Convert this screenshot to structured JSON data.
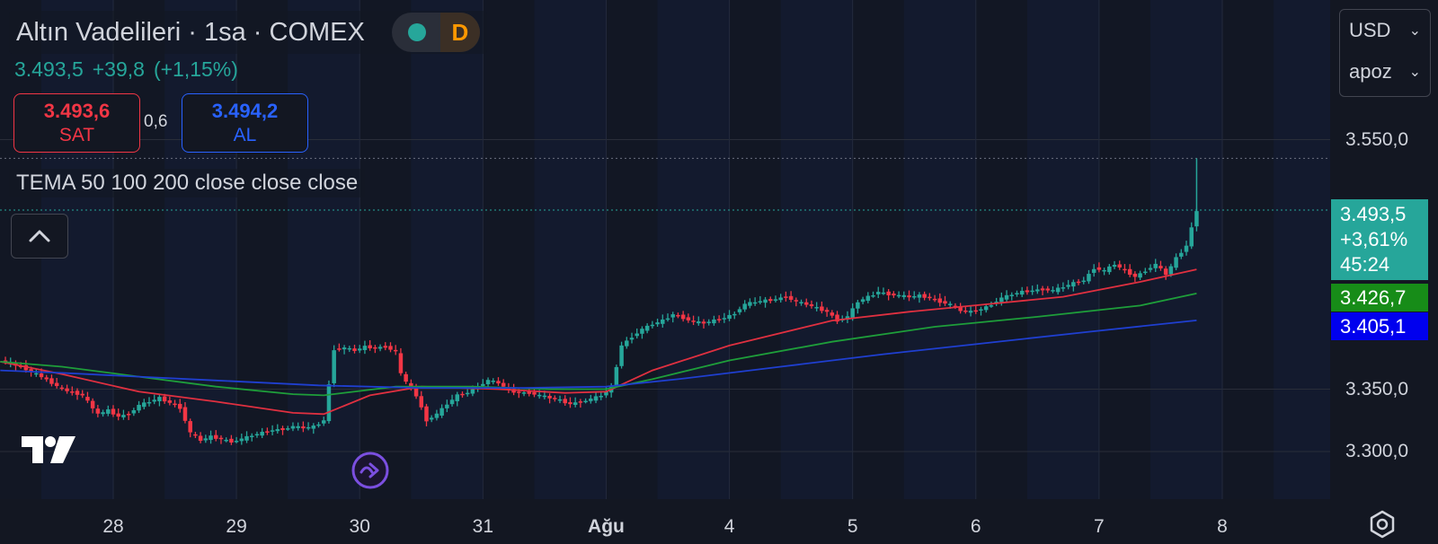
{
  "header": {
    "title": "Altın Vadelileri · 1sa · COMEX",
    "status_letter": "D",
    "last_price": "3.493,5",
    "change": "+39,8",
    "change_pct": "(+1,15%)"
  },
  "trade": {
    "sell_price": "3.493,6",
    "sell_label": "SAT",
    "spread": "0,6",
    "buy_price": "3.494,2",
    "buy_label": "AL"
  },
  "indicator_label": "TEMA 50 100 200 close close close",
  "selectors": {
    "currency": "USD",
    "unit": "apoz"
  },
  "price_tags": {
    "last": "3.493,5",
    "last_pct": "+3,61%",
    "countdown": "45:24",
    "green": "3.426,7",
    "blue": "3.405,1"
  },
  "colors": {
    "up": "#26a69a",
    "down": "#f23645",
    "tema50": "#e03040",
    "tema100": "#1e9e3a",
    "tema200": "#1f3fd0",
    "accent": "#7b4fe0",
    "session": "#1a2442"
  },
  "icons": {
    "logo": "tradingview-logo-icon",
    "collapse": "chevron-up-icon",
    "nav": "jump-forward-icon",
    "settings": "gear-icon"
  },
  "chart_data": {
    "type": "candlestick",
    "x_labels": [
      "28",
      "29",
      "30",
      "31",
      "Ağu",
      "4",
      "5",
      "6",
      "7",
      "8"
    ],
    "x_label_times": [
      0,
      24,
      48,
      72,
      96,
      120,
      144,
      168,
      192,
      216
    ],
    "y_ticks": [
      "3.300,0",
      "3.350,0",
      "3.550,0"
    ],
    "y_tick_values": [
      3300,
      3350,
      3550
    ],
    "ylim": [
      3270,
      3580
    ],
    "xlim": [
      -22,
      232
    ],
    "ohlc_points": [
      [
        -22,
        3373
      ],
      [
        -18,
        3368
      ],
      [
        -14,
        3360
      ],
      [
        -10,
        3350
      ],
      [
        -6,
        3345
      ],
      [
        -3,
        3330
      ],
      [
        -1,
        3333
      ],
      [
        1,
        3328
      ],
      [
        3,
        3330
      ],
      [
        5,
        3337
      ],
      [
        7,
        3340
      ],
      [
        9,
        3343
      ],
      [
        11,
        3339
      ],
      [
        13,
        3335
      ],
      [
        15,
        3315
      ],
      [
        17,
        3309
      ],
      [
        19,
        3312
      ],
      [
        21,
        3310
      ],
      [
        23,
        3308
      ],
      [
        25,
        3310
      ],
      [
        27,
        3313
      ],
      [
        29,
        3315
      ],
      [
        31,
        3317
      ],
      [
        33,
        3318
      ],
      [
        35,
        3320
      ],
      [
        37,
        3319
      ],
      [
        39,
        3320
      ],
      [
        41,
        3325
      ],
      [
        43,
        3382
      ],
      [
        45,
        3383
      ],
      [
        47,
        3381
      ],
      [
        49,
        3384
      ],
      [
        51,
        3383
      ],
      [
        53,
        3384
      ],
      [
        55,
        3380
      ],
      [
        56,
        3362
      ],
      [
        58,
        3350
      ],
      [
        59,
        3345
      ],
      [
        61,
        3325
      ],
      [
        63,
        3330
      ],
      [
        65,
        3338
      ],
      [
        67,
        3345
      ],
      [
        69,
        3347
      ],
      [
        71,
        3352
      ],
      [
        73,
        3357
      ],
      [
        75,
        3355
      ],
      [
        77,
        3349
      ],
      [
        79,
        3347
      ],
      [
        81,
        3347
      ],
      [
        83,
        3345
      ],
      [
        85,
        3343
      ],
      [
        87,
        3341
      ],
      [
        89,
        3338
      ],
      [
        91,
        3340
      ],
      [
        93,
        3342
      ],
      [
        95,
        3345
      ],
      [
        97,
        3352
      ],
      [
        99,
        3385
      ],
      [
        101,
        3392
      ],
      [
        103,
        3398
      ],
      [
        105,
        3402
      ],
      [
        107,
        3405
      ],
      [
        109,
        3410
      ],
      [
        111,
        3407
      ],
      [
        113,
        3404
      ],
      [
        115,
        3403
      ],
      [
        117,
        3405
      ],
      [
        119,
        3407
      ],
      [
        121,
        3411
      ],
      [
        123,
        3418
      ],
      [
        125,
        3420
      ],
      [
        127,
        3421
      ],
      [
        129,
        3422
      ],
      [
        131,
        3424
      ],
      [
        133,
        3420
      ],
      [
        135,
        3418
      ],
      [
        137,
        3415
      ],
      [
        139,
        3412
      ],
      [
        141,
        3405
      ],
      [
        143,
        3408
      ],
      [
        145,
        3420
      ],
      [
        147,
        3424
      ],
      [
        149,
        3428
      ],
      [
        151,
        3426
      ],
      [
        153,
        3425
      ],
      [
        155,
        3424
      ],
      [
        157,
        3425
      ],
      [
        159,
        3423
      ],
      [
        161,
        3420
      ],
      [
        163,
        3418
      ],
      [
        165,
        3413
      ],
      [
        167,
        3412
      ],
      [
        169,
        3414
      ],
      [
        171,
        3418
      ],
      [
        173,
        3423
      ],
      [
        175,
        3426
      ],
      [
        177,
        3428
      ],
      [
        179,
        3429
      ],
      [
        181,
        3430
      ],
      [
        183,
        3429
      ],
      [
        185,
        3432
      ],
      [
        187,
        3435
      ],
      [
        189,
        3437
      ],
      [
        191,
        3447
      ],
      [
        193,
        3445
      ],
      [
        195,
        3450
      ],
      [
        197,
        3445
      ],
      [
        199,
        3440
      ],
      [
        201,
        3445
      ],
      [
        203,
        3450
      ],
      [
        205,
        3442
      ],
      [
        207,
        3455
      ],
      [
        209,
        3465
      ],
      [
        211,
        3493.5
      ]
    ],
    "series": [
      {
        "name": "TEMA 50",
        "values": [
          [
            -22,
            3372
          ],
          [
            -10,
            3362
          ],
          [
            5,
            3348
          ],
          [
            20,
            3340
          ],
          [
            35,
            3331
          ],
          [
            41,
            3330
          ],
          [
            50,
            3345
          ],
          [
            60,
            3352
          ],
          [
            75,
            3350
          ],
          [
            88,
            3347
          ],
          [
            96,
            3348
          ],
          [
            105,
            3365
          ],
          [
            120,
            3385
          ],
          [
            140,
            3405
          ],
          [
            155,
            3412
          ],
          [
            170,
            3418
          ],
          [
            185,
            3424
          ],
          [
            200,
            3436
          ],
          [
            211,
            3446
          ]
        ]
      },
      {
        "name": "TEMA 100",
        "values": [
          [
            -22,
            3372
          ],
          [
            -10,
            3368
          ],
          [
            5,
            3360
          ],
          [
            20,
            3352
          ],
          [
            35,
            3346
          ],
          [
            41,
            3345
          ],
          [
            55,
            3352
          ],
          [
            70,
            3352
          ],
          [
            85,
            3350
          ],
          [
            96,
            3350
          ],
          [
            105,
            3358
          ],
          [
            120,
            3373
          ],
          [
            140,
            3388
          ],
          [
            160,
            3400
          ],
          [
            180,
            3408
          ],
          [
            200,
            3417
          ],
          [
            211,
            3426.7
          ]
        ]
      },
      {
        "name": "TEMA 200",
        "values": [
          [
            -22,
            3365
          ],
          [
            -10,
            3363
          ],
          [
            5,
            3360
          ],
          [
            20,
            3357
          ],
          [
            40,
            3353
          ],
          [
            60,
            3351
          ],
          [
            80,
            3351
          ],
          [
            96,
            3352
          ],
          [
            110,
            3358
          ],
          [
            130,
            3368
          ],
          [
            150,
            3378
          ],
          [
            170,
            3387
          ],
          [
            190,
            3396
          ],
          [
            211,
            3405.1
          ]
        ]
      }
    ]
  }
}
